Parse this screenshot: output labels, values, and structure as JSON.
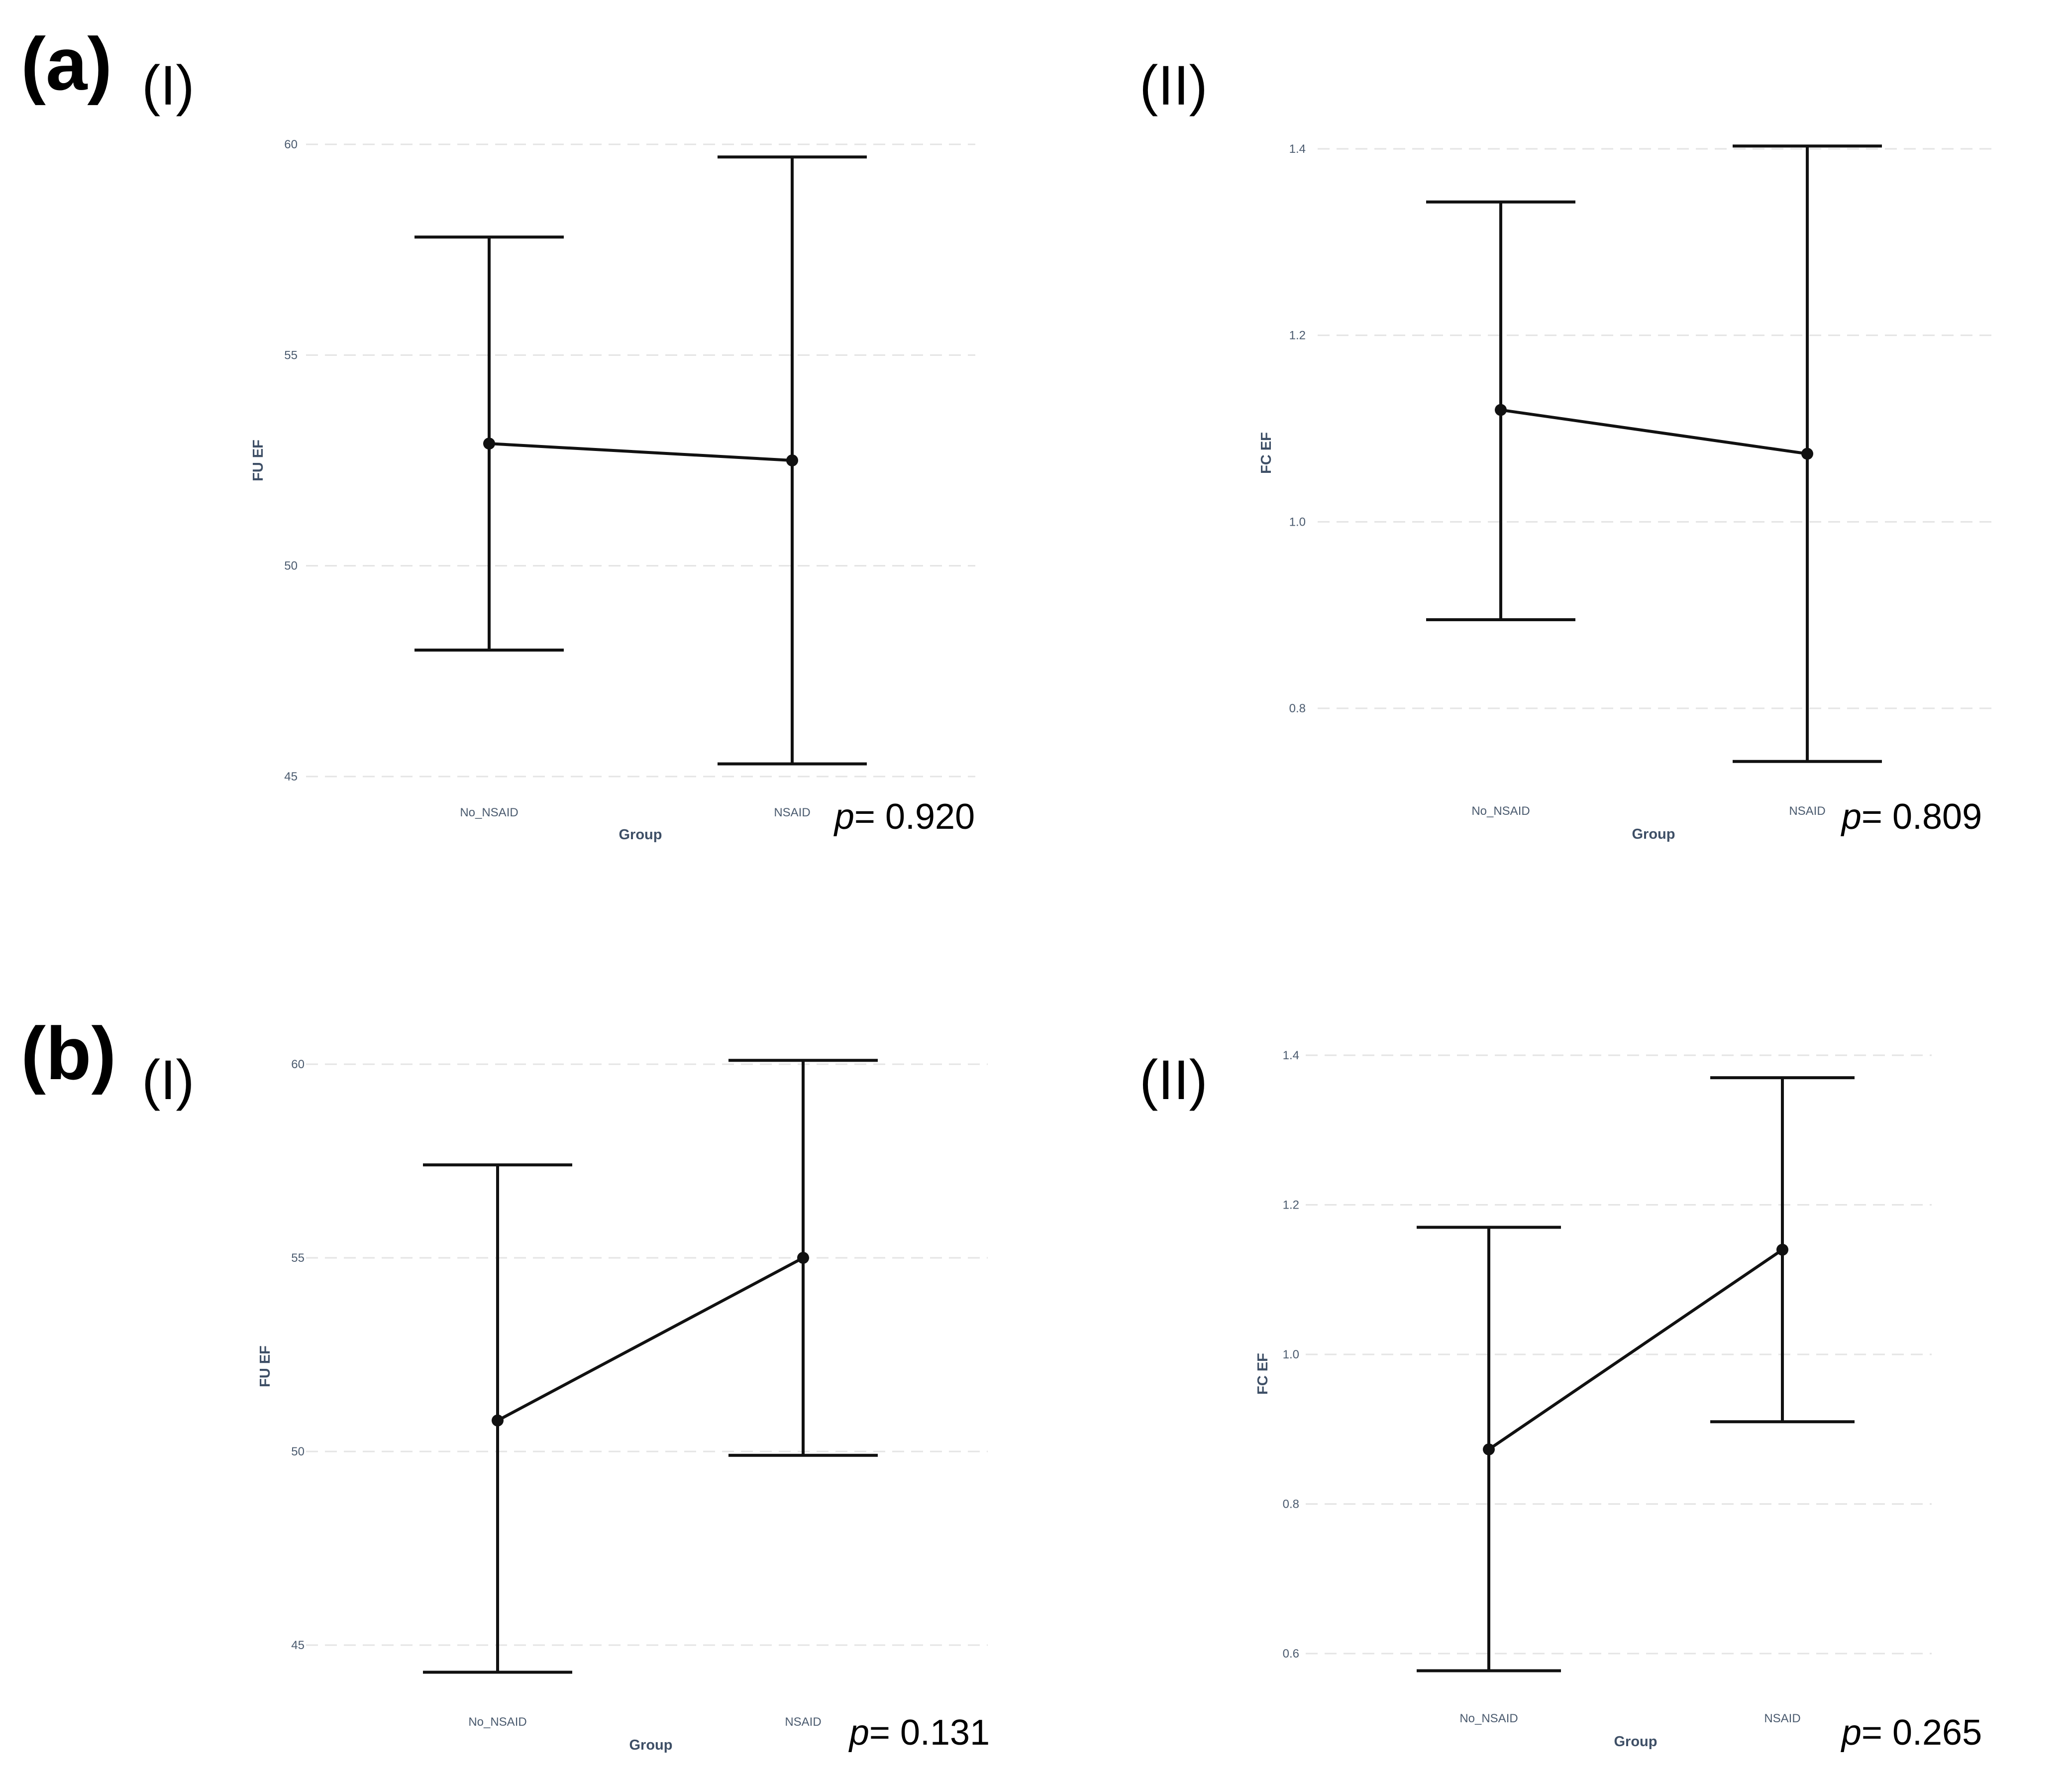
{
  "figure": {
    "labels": {
      "a": "(a)",
      "b": "(b)"
    }
  },
  "chart_data": [
    {
      "id": "a-I",
      "panel": "(I)",
      "type": "errorbar-line",
      "xlabel": "Group",
      "ylabel": "FU EF",
      "categories": [
        "No_NSAID",
        "NSAID"
      ],
      "means": [
        52.9,
        52.5
      ],
      "lower": [
        48.0,
        45.3
      ],
      "upper": [
        57.8,
        59.7
      ],
      "ylim": [
        45,
        60
      ],
      "yticks": [
        45,
        50,
        55,
        60
      ],
      "grid": true,
      "p_prefix": "p",
      "p_value": "= 0.920"
    },
    {
      "id": "a-II",
      "panel": "(II)",
      "type": "errorbar-line",
      "xlabel": "Group",
      "ylabel": "FC EF",
      "categories": [
        "No_NSAID",
        "NSAID"
      ],
      "means": [
        1.12,
        1.073
      ],
      "lower": [
        0.895,
        0.743
      ],
      "upper": [
        1.343,
        1.403
      ],
      "ylim": [
        0.8,
        1.4
      ],
      "yticks": [
        0.8,
        1.0,
        1.2,
        1.4
      ],
      "grid": true,
      "p_prefix": "p",
      "p_value": "= 0.809"
    },
    {
      "id": "b-I",
      "panel": "(I)",
      "type": "errorbar-line",
      "xlabel": "Group",
      "ylabel": "FU EF",
      "categories": [
        "No_NSAID",
        "NSAID"
      ],
      "means": [
        50.8,
        55.0
      ],
      "lower": [
        44.3,
        49.9
      ],
      "upper": [
        57.4,
        60.1
      ],
      "ylim": [
        45,
        60
      ],
      "yticks": [
        45,
        50,
        55,
        60
      ],
      "grid": true,
      "p_prefix": "p",
      "p_value": "= 0.131"
    },
    {
      "id": "b-II",
      "panel": "(II)",
      "type": "errorbar-line",
      "xlabel": "Group",
      "ylabel": "FC EF",
      "categories": [
        "No_NSAID",
        "NSAID"
      ],
      "means": [
        0.873,
        1.14
      ],
      "lower": [
        0.577,
        0.91
      ],
      "upper": [
        1.17,
        1.37
      ],
      "ylim": [
        0.6,
        1.4
      ],
      "yticks": [
        0.6,
        0.8,
        1.0,
        1.2,
        1.4
      ],
      "grid": true,
      "p_prefix": "p",
      "p_value": "= 0.265"
    }
  ]
}
